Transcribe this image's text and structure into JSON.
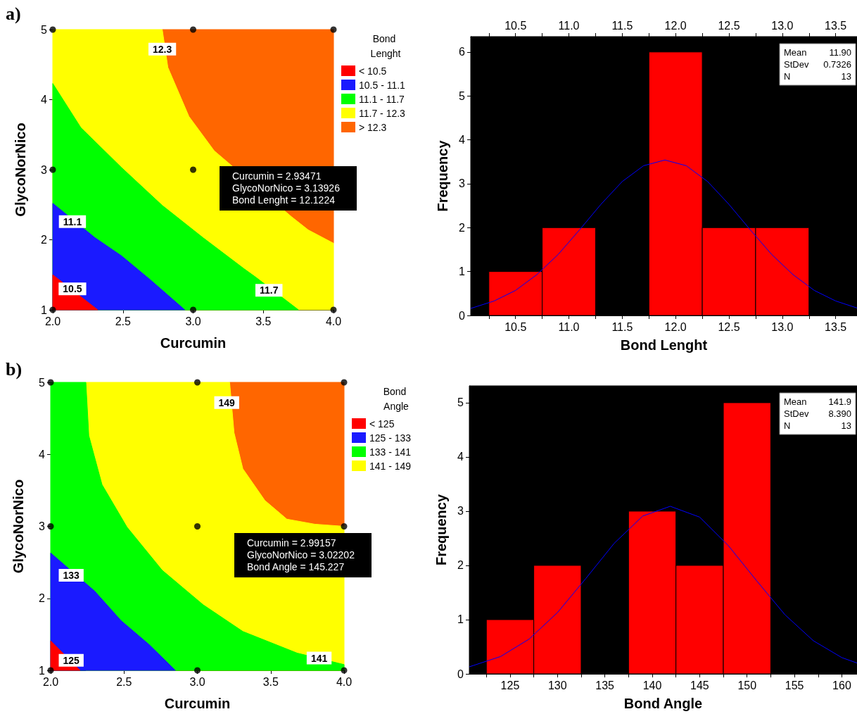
{
  "chart_data": [
    {
      "type": "area",
      "xlabel": "Curcumin",
      "ylabel": "GlycoNorNico",
      "legend_title": "Bond Lenght",
      "legend": "right",
      "grid": false,
      "xlim": [
        2,
        4
      ],
      "xticks": [
        {
          "value": 2,
          "label": "2.0"
        },
        {
          "value": 2.5,
          "label": "2.5"
        },
        {
          "value": 3,
          "label": "3.0"
        },
        {
          "value": 3.5,
          "label": "3.5"
        },
        {
          "value": 4,
          "label": "4.0"
        }
      ],
      "ylim": [
        1,
        5
      ],
      "yticks": [
        1,
        2,
        3,
        4,
        5
      ],
      "annotations": [
        "a)",
        {
          "text": "12.3",
          "x": 2.78,
          "y": 4.72
        },
        {
          "text": "11.1",
          "x": 2.14,
          "y": 2.26
        },
        {
          "text": "10.5",
          "x": 2.14,
          "y": 1.3
        },
        {
          "text": "11.7",
          "x": 3.54,
          "y": 1.28
        },
        "Curcumin = 2.93471\nGlycoNorNico = 3.13926\nBond Lenght = 12.1224"
      ],
      "series": [
        {
          "name": "< 10.5",
          "color": "#ff0000",
          "x": [
            2,
            2.32
          ],
          "values": [
            1.5,
            1
          ]
        },
        {
          "name": "10.5 - 11.1",
          "color": "#1a1aff",
          "x": [
            2,
            2.3,
            2.49,
            2.7,
            2.94
          ],
          "values": [
            2.52,
            2.03,
            1.77,
            1.42,
            1
          ]
        },
        {
          "name": "11.1 - 11.7",
          "color": "#00ff00",
          "x": [
            2,
            2.2,
            2.49,
            2.78,
            3.07,
            3.36,
            3.45,
            3.75
          ],
          "values": [
            4.23,
            3.6,
            3.03,
            2.49,
            2.03,
            1.59,
            1.46,
            1
          ]
        },
        {
          "name": "11.7 - 12.3",
          "color": "#ffff00",
          "x": [
            2,
            2.78,
            2.82,
            2.97,
            3.15,
            3.7,
            3.82,
            4
          ],
          "values": [
            5,
            5,
            4.46,
            3.76,
            3.27,
            2.33,
            2.14,
            1.95
          ]
        },
        {
          "name": "> 12.3",
          "color": "#ff6600",
          "x": [
            2.78,
            2.82,
            2.97,
            3.15,
            3.7,
            3.82,
            4,
            4
          ],
          "values": [
            5,
            4.46,
            3.76,
            3.27,
            2.33,
            2.14,
            1.95,
            5
          ]
        },
        {
          "type": "scatter",
          "marker": "circle",
          "color": "#000000",
          "x": [
            2,
            2,
            2,
            3,
            3,
            3,
            4,
            4
          ],
          "values": [
            1,
            3,
            5,
            1,
            3,
            5,
            1,
            5
          ]
        }
      ]
    },
    {
      "type": "histogram",
      "xlabel": "Bond Lenght",
      "ylabel": "Frequency",
      "color": "#ff0000",
      "grid": false,
      "bins": [
        10.25,
        10.75,
        11.25,
        11.75,
        12.25,
        12.75,
        13.25
      ],
      "values": [
        1,
        2,
        0,
        6,
        2,
        2
      ],
      "xlim": [
        10.08,
        13.7
      ],
      "xticks": [
        {
          "value": 10.25,
          "label": null
        },
        {
          "value": 10.5,
          "label": "10.5"
        },
        {
          "value": 10.75,
          "label": null
        },
        {
          "value": 11,
          "label": "11.0"
        },
        {
          "value": 11.25,
          "label": null
        },
        {
          "value": 11.5,
          "label": "11.5"
        },
        {
          "value": 11.75,
          "label": null
        },
        {
          "value": 12,
          "label": "12.0"
        },
        {
          "value": 12.25,
          "label": null
        },
        {
          "value": 12.5,
          "label": "12.5"
        },
        {
          "value": 12.75,
          "label": null
        },
        {
          "value": 13,
          "label": "13.0"
        },
        {
          "value": 13.25,
          "label": null
        },
        {
          "value": 13.5,
          "label": "13.5"
        }
      ],
      "x2lim": [
        10.08,
        13.7
      ],
      "x2ticks": [
        {
          "value": 10.25,
          "label": null
        },
        {
          "value": 10.5,
          "label": "10.5"
        },
        {
          "value": 10.75,
          "label": null
        },
        {
          "value": 11,
          "label": "11.0"
        },
        {
          "value": 11.25,
          "label": null
        },
        {
          "value": 11.5,
          "label": "11.5"
        },
        {
          "value": 11.75,
          "label": null
        },
        {
          "value": 12,
          "label": "12.0"
        },
        {
          "value": 12.25,
          "label": null
        },
        {
          "value": 12.5,
          "label": "12.5"
        },
        {
          "value": 12.75,
          "label": null
        },
        {
          "value": 13,
          "label": "13.0"
        },
        {
          "value": 13.25,
          "label": null
        },
        {
          "value": 13.5,
          "label": "13.5"
        }
      ],
      "ylim": [
        0,
        6.35
      ],
      "yticks": [
        0,
        1,
        2,
        3,
        4,
        5,
        6
      ],
      "annotations": [
        "Mean 11.90",
        "StDev 0.7326",
        "N 13"
      ],
      "series": [
        {
          "type": "line",
          "color": "#0000ff",
          "x": [
            10.08,
            10.3,
            10.5,
            10.7,
            10.9,
            11.1,
            11.3,
            11.5,
            11.7,
            11.9,
            12.1,
            12.3,
            12.5,
            12.7,
            12.9,
            13.1,
            13.3,
            13.5,
            13.7
          ],
          "values": [
            0.16,
            0.33,
            0.57,
            0.93,
            1.39,
            1.95,
            2.53,
            3.05,
            3.41,
            3.54,
            3.41,
            3.05,
            2.53,
            1.95,
            1.39,
            0.93,
            0.57,
            0.33,
            0.17
          ]
        }
      ]
    },
    {
      "type": "area",
      "xlabel": "Curcumin",
      "ylabel": "GlycoNorNico",
      "legend_title": "Bond Angle",
      "legend": "right",
      "grid": false,
      "xlim": [
        2,
        4
      ],
      "xticks": [
        {
          "value": 2,
          "label": "2.0"
        },
        {
          "value": 2.5,
          "label": "2.5"
        },
        {
          "value": 3,
          "label": "3.0"
        },
        {
          "value": 3.5,
          "label": "3.5"
        },
        {
          "value": 4,
          "label": "4.0"
        }
      ],
      "ylim": [
        1,
        5
      ],
      "yticks": [
        1,
        2,
        3,
        4,
        5
      ],
      "annotations": [
        "b)",
        {
          "text": "149",
          "x": 3.2,
          "y": 4.72
        },
        {
          "text": "133",
          "x": 2.14,
          "y": 2.32
        },
        {
          "text": "125",
          "x": 2.14,
          "y": 1.14
        },
        {
          "text": "141",
          "x": 3.83,
          "y": 1.17
        },
        "Curcumin = 2.99157\nGlycoNorNico = 3.02202\nBond Angle = 145.227"
      ],
      "series": [
        {
          "name": "< 125",
          "color": "#ff0000",
          "x": [
            2,
            2.2
          ],
          "values": [
            1.41,
            1
          ]
        },
        {
          "name": "125 - 133",
          "color": "#1a1aff",
          "x": [
            2,
            2.3,
            2.48,
            2.67,
            2.85
          ],
          "values": [
            2.63,
            2.1,
            1.69,
            1.36,
            1
          ]
        },
        {
          "name": "133 - 141",
          "color": "#00ff00",
          "x": [
            2,
            2.24,
            2.26,
            2.35,
            2.52,
            2.76,
            3.04,
            3.31,
            3.68,
            3.96,
            4
          ],
          "values": [
            5,
            5,
            4.26,
            3.58,
            2.99,
            2.39,
            1.91,
            1.54,
            1.24,
            1.1,
            1.08
          ]
        },
        {
          "name": "141 - 149",
          "color": "#ffff00",
          "x": [
            2.24,
            3.22,
            3.25,
            3.31,
            3.46,
            3.61,
            3.8,
            4
          ],
          "values": [
            5,
            5,
            4.3,
            3.8,
            3.36,
            3.1,
            3.03,
            3
          ]
        },
        {
          "color": "#ff6600",
          "x": [
            3.22,
            3.25,
            3.31,
            3.46,
            3.61,
            3.8,
            4,
            4
          ],
          "values": [
            5,
            4.3,
            3.8,
            3.36,
            3.1,
            3.03,
            3,
            5
          ]
        },
        {
          "type": "scatter",
          "marker": "circle",
          "color": "#000000",
          "x": [
            2,
            2,
            2,
            3,
            3,
            3,
            4,
            4,
            4
          ],
          "values": [
            1,
            3,
            5,
            1,
            3,
            5,
            1,
            3,
            5
          ]
        }
      ]
    },
    {
      "type": "histogram",
      "xlabel": "Bond Angle",
      "ylabel": "Frequency",
      "color": "#ff0000",
      "grid": false,
      "bins": [
        122.5,
        127.5,
        132.5,
        137.5,
        142.5,
        147.5,
        152.5
      ],
      "values": [
        1,
        2,
        0,
        3,
        2,
        5
      ],
      "xlim": [
        120.7,
        161.6
      ],
      "xticks": [
        {
          "value": 122.5,
          "label": null
        },
        125,
        {
          "value": 127.5,
          "label": null
        },
        130,
        {
          "value": 132.5,
          "label": null
        },
        135,
        {
          "value": 137.5,
          "label": null
        },
        140,
        {
          "value": 142.5,
          "label": null
        },
        145,
        {
          "value": 147.5,
          "label": null
        },
        150,
        {
          "value": 152.5,
          "label": null
        },
        155,
        {
          "value": 157.5,
          "label": null
        },
        160
      ],
      "ylim": [
        0,
        5.31
      ],
      "yticks": [
        0,
        1,
        2,
        3,
        4,
        5
      ],
      "annotations": [
        "Mean 141.9",
        "StDev 8.390",
        "N 13"
      ],
      "series": [
        {
          "type": "line",
          "color": "#0000ff",
          "x": [
            120.7,
            124,
            127,
            130,
            133,
            136,
            139,
            141.9,
            145,
            148,
            151,
            154,
            157,
            160,
            161.6
          ],
          "values": [
            0.13,
            0.32,
            0.64,
            1.13,
            1.76,
            2.41,
            2.91,
            3.09,
            2.89,
            2.37,
            1.72,
            1.09,
            0.61,
            0.3,
            0.2
          ]
        }
      ]
    }
  ]
}
